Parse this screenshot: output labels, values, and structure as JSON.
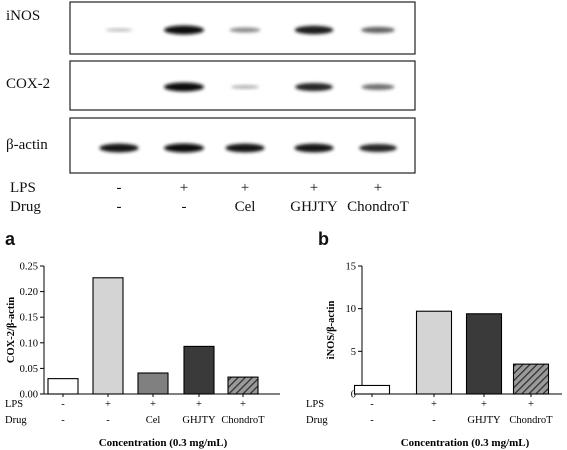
{
  "western_blot": {
    "bands": [
      {
        "label": "iNOS",
        "intensities": [
          0.08,
          1.0,
          0.35,
          0.9,
          0.55
        ]
      },
      {
        "label": "COX-2",
        "intensities": [
          0.0,
          1.0,
          0.15,
          0.85,
          0.5
        ]
      },
      {
        "label": "β-actin",
        "intensities": [
          0.95,
          1.0,
          0.95,
          0.95,
          0.85
        ]
      }
    ],
    "rows": [
      {
        "label": "LPS",
        "values": [
          "-",
          "+",
          "+",
          "+",
          "+"
        ]
      },
      {
        "label": "Drug",
        "values": [
          "-",
          "-",
          "Cel",
          "GHJTY",
          "ChondroT"
        ]
      }
    ]
  },
  "panel_a": {
    "letter": "a"
  },
  "panel_b": {
    "letter": "b"
  },
  "chart_data": [
    {
      "type": "bar",
      "ylabel": "COX-2/β-actin",
      "xlabel": "Concentration (0.3 mg/mL)",
      "ylim": [
        0,
        0.25
      ],
      "yticks": [
        "0.00",
        "0.05",
        "0.10",
        "0.15",
        "0.20",
        "0.25"
      ],
      "categories": [
        "-/-",
        "+/-",
        "+/Cel",
        "+/GHJTY",
        "+/ChondroT"
      ],
      "values": [
        0.03,
        0.227,
        0.041,
        0.093,
        0.033
      ],
      "lps": [
        "-",
        "+",
        "+",
        "+",
        "+"
      ],
      "drug": [
        "-",
        "-",
        "Cel",
        "GHJTY",
        "ChondroT"
      ],
      "row_labels": [
        "LPS",
        "Drug"
      ],
      "fills": [
        "#ffffff",
        "#d4d4d4",
        "#808080",
        "#3a3a3a",
        "hatch"
      ]
    },
    {
      "type": "bar",
      "ylabel": "iNOS/β-actin",
      "xlabel": "Concentration (0.3 mg/mL)",
      "ylim": [
        0,
        15
      ],
      "yticks": [
        "0",
        "5",
        "10",
        "15"
      ],
      "categories": [
        "-/-",
        "+/-",
        "+/GHJTY",
        "+/ChondroT"
      ],
      "values": [
        1.0,
        9.7,
        9.4,
        3.5
      ],
      "lps": [
        "-",
        "+",
        "+",
        "+"
      ],
      "drug": [
        "-",
        "-",
        "GHJTY",
        "ChondroT"
      ],
      "row_labels": [
        "LPS",
        "Drug"
      ],
      "fills": [
        "#ffffff",
        "#d4d4d4",
        "#3a3a3a",
        "hatch"
      ]
    }
  ]
}
